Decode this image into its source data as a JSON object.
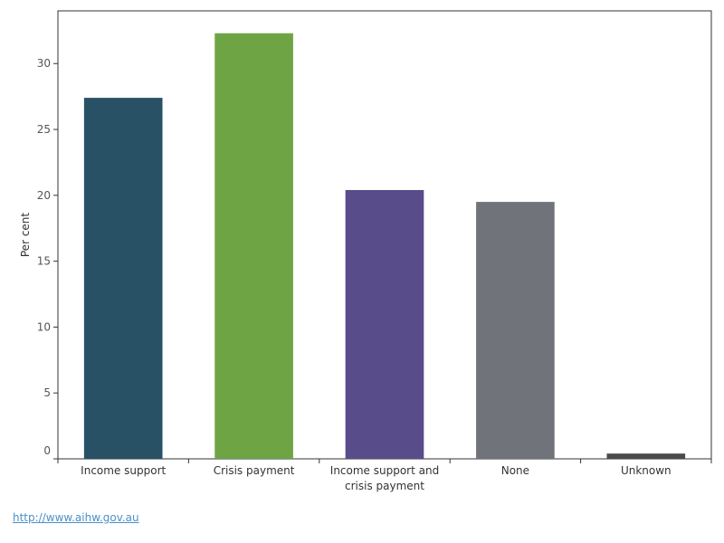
{
  "chart_data": {
    "type": "bar",
    "title": "",
    "xlabel": "",
    "ylabel": "Per cent",
    "ylim": [
      0,
      34
    ],
    "yticks": [
      0,
      5,
      10,
      15,
      20,
      25,
      30
    ],
    "grid": false,
    "categories": [
      [
        "Income support"
      ],
      [
        "Crisis payment"
      ],
      [
        "Income support and",
        "crisis payment"
      ],
      [
        "None"
      ],
      [
        "Unknown"
      ]
    ],
    "values": [
      27.4,
      32.3,
      20.4,
      19.5,
      0.4
    ],
    "colors": [
      "#285166",
      "#6fa445",
      "#594c8a",
      "#71737b",
      "#4a4a4a"
    ]
  },
  "footer": {
    "link_text": "http://www.aihw.gov.au"
  }
}
